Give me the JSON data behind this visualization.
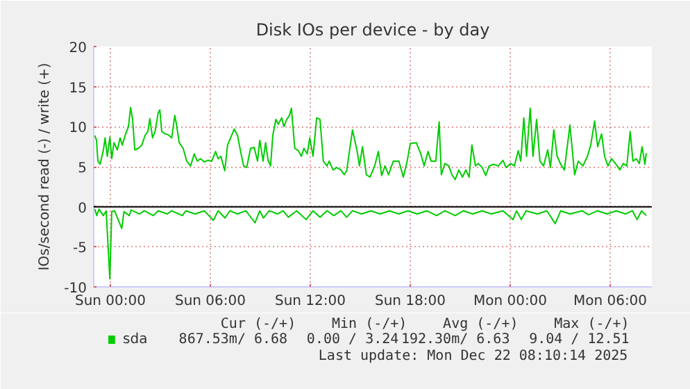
{
  "chart_data": {
    "type": "line",
    "title": "Disk IOs per device - by day",
    "ylabel": "IOs/second read (-) / write (+)",
    "xlim": [
      "2025-12-20T23:00",
      "2025-12-22T08:30"
    ],
    "ylim": [
      -10,
      20
    ],
    "xticks": [
      {
        "value": "2025-12-21T00:00",
        "label": "Sun 00:00"
      },
      {
        "value": "2025-12-21T06:00",
        "label": "Sun 06:00"
      },
      {
        "value": "2025-12-21T12:00",
        "label": "Sun 12:00"
      },
      {
        "value": "2025-12-21T18:00",
        "label": "Sun 18:00"
      },
      {
        "value": "2025-12-22T00:00",
        "label": "Mon 00:00"
      },
      {
        "value": "2025-12-22T06:00",
        "label": "Mon 06:00"
      }
    ],
    "yticks": [
      -10,
      -5,
      0,
      5,
      10,
      15,
      20
    ],
    "grid": true,
    "legend": "bottom left",
    "ref_lines": [
      {
        "axis": "y",
        "value": 0,
        "label": null,
        "color": "#000000"
      }
    ],
    "annotations": [
      "Cur (-/+)",
      "Min (-/+)",
      "Avg (-/+)",
      "Max (-/+)",
      "867.53m/  6.68",
      "0.00 /  3.24",
      "192.30m/  6.63",
      "9.04 / 12.51",
      "Last update:  Mon Dec 22 08:10:14 2025"
    ],
    "series": [
      {
        "name": "sda",
        "color": "#00cc00",
        "x": [
          "2025-12-20T23:04",
          "2025-12-20T23:10",
          "2025-12-20T23:15",
          "2025-12-20T23:23",
          "2025-12-20T23:35",
          "2025-12-20T23:41",
          "2025-12-20T23:49",
          "2025-12-20T23:58",
          "2025-12-21T00:05",
          "2025-12-21T00:13",
          "2025-12-21T00:25",
          "2025-12-21T00:35",
          "2025-12-21T00:43",
          "2025-12-21T00:55",
          "2025-12-21T01:05",
          "2025-12-21T01:13",
          "2025-12-21T01:20",
          "2025-12-21T01:28",
          "2025-12-21T01:41",
          "2025-12-21T01:53",
          "2025-12-21T02:05",
          "2025-12-21T02:15",
          "2025-12-21T02:22",
          "2025-12-21T02:32",
          "2025-12-21T02:41",
          "2025-12-21T02:52",
          "2025-12-21T02:58",
          "2025-12-21T03:05",
          "2025-12-21T03:17",
          "2025-12-21T03:28",
          "2025-12-21T03:41",
          "2025-12-21T03:52",
          "2025-12-21T03:58",
          "2025-12-21T04:08",
          "2025-12-21T04:22",
          "2025-12-21T04:35",
          "2025-12-21T04:49",
          "2025-12-21T05:02",
          "2025-12-21T05:13",
          "2025-12-21T05:25",
          "2025-12-21T05:38",
          "2025-12-21T05:52",
          "2025-12-21T06:05",
          "2025-12-21T06:19",
          "2025-12-21T06:28",
          "2025-12-21T06:38",
          "2025-12-21T06:52",
          "2025-12-21T07:02",
          "2025-12-21T07:13",
          "2025-12-21T07:26",
          "2025-12-21T07:38",
          "2025-12-21T07:49",
          "2025-12-21T08:00",
          "2025-12-21T08:11",
          "2025-12-21T08:25",
          "2025-12-21T08:38",
          "2025-12-21T08:50",
          "2025-12-21T08:58",
          "2025-12-21T09:10",
          "2025-12-21T09:19",
          "2025-12-21T09:28",
          "2025-12-21T09:37",
          "2025-12-21T09:45",
          "2025-12-21T09:56",
          "2025-12-21T10:05",
          "2025-12-21T10:17",
          "2025-12-21T10:25",
          "2025-12-21T10:35",
          "2025-12-21T10:45",
          "2025-12-21T10:52",
          "2025-12-21T11:04",
          "2025-12-21T11:17",
          "2025-12-21T11:28",
          "2025-12-21T11:37",
          "2025-12-21T11:49",
          "2025-12-21T11:58",
          "2025-12-21T12:10",
          "2025-12-21T12:23",
          "2025-12-21T12:35",
          "2025-12-21T12:47",
          "2025-12-21T13:00",
          "2025-12-21T13:08",
          "2025-12-21T13:22",
          "2025-12-21T13:35",
          "2025-12-21T13:50",
          "2025-12-21T14:02",
          "2025-12-21T14:11",
          "2025-12-21T14:32",
          "2025-12-21T14:49",
          "2025-12-21T14:57",
          "2025-12-21T15:08",
          "2025-12-21T15:22",
          "2025-12-21T15:35",
          "2025-12-21T15:52",
          "2025-12-21T16:05",
          "2025-12-21T16:17",
          "2025-12-21T16:29",
          "2025-12-21T16:42",
          "2025-12-21T16:59",
          "2025-12-21T17:19",
          "2025-12-21T17:35",
          "2025-12-21T17:49",
          "2025-12-21T18:00",
          "2025-12-21T18:22",
          "2025-12-21T18:38",
          "2025-12-21T18:50",
          "2025-12-21T19:04",
          "2025-12-21T19:15",
          "2025-12-21T19:32",
          "2025-12-21T19:44",
          "2025-12-21T19:52",
          "2025-12-21T20:05",
          "2025-12-21T20:19",
          "2025-12-21T20:30",
          "2025-12-21T20:42",
          "2025-12-21T20:55",
          "2025-12-21T21:08",
          "2025-12-21T21:20",
          "2025-12-21T21:32",
          "2025-12-21T21:42",
          "2025-12-21T21:55",
          "2025-12-21T22:05",
          "2025-12-21T22:19",
          "2025-12-21T22:32",
          "2025-12-21T22:44",
          "2025-12-21T23:00",
          "2025-12-21T23:17",
          "2025-12-21T23:34",
          "2025-12-21T23:45",
          "2025-12-22T00:02",
          "2025-12-22T00:15",
          "2025-12-22T00:29",
          "2025-12-22T00:38",
          "2025-12-22T00:49",
          "2025-12-22T00:59",
          "2025-12-22T01:12",
          "2025-12-22T01:22",
          "2025-12-22T01:35",
          "2025-12-22T01:47",
          "2025-12-22T02:00",
          "2025-12-22T02:15",
          "2025-12-22T02:25",
          "2025-12-22T02:37",
          "2025-12-22T02:49",
          "2025-12-22T03:02",
          "2025-12-22T03:15",
          "2025-12-22T03:35",
          "2025-12-22T03:52",
          "2025-12-22T04:05",
          "2025-12-22T04:22",
          "2025-12-22T04:38",
          "2025-12-22T04:50",
          "2025-12-22T05:04",
          "2025-12-22T05:15",
          "2025-12-22T05:29",
          "2025-12-22T05:40",
          "2025-12-22T05:52",
          "2025-12-22T06:05",
          "2025-12-22T06:19",
          "2025-12-22T06:35",
          "2025-12-22T06:47",
          "2025-12-22T07:00",
          "2025-12-22T07:12",
          "2025-12-22T07:22",
          "2025-12-22T07:34",
          "2025-12-22T07:45",
          "2025-12-22T07:55",
          "2025-12-22T08:05",
          "2025-12-22T08:10"
        ],
        "values": [
          8.9,
          8.3,
          5.7,
          5.3,
          7.1,
          8.6,
          6.3,
          8.7,
          6.0,
          8.0,
          7.1,
          8.6,
          7.7,
          9.1,
          10,
          12.4,
          10.9,
          7.1,
          7.3,
          7.7,
          8.9,
          9.4,
          11,
          8.6,
          9.4,
          11.7,
          12.1,
          9.4,
          9.1,
          9,
          8.6,
          11.4,
          10.3,
          8,
          7.3,
          5.7,
          5.1,
          6.6,
          5.7,
          6.0,
          5.6,
          5.8,
          5.7,
          6.9,
          6.0,
          6.3,
          4.5,
          7.7,
          8.6,
          9.7,
          8.9,
          6.9,
          5.1,
          4.9,
          7.3,
          7.4,
          5.7,
          8.3,
          5.7,
          8.0,
          5.8,
          5.1,
          8.9,
          10.9,
          10.3,
          11.1,
          10,
          10.9,
          11.4,
          12.3,
          7.3,
          7,
          6.3,
          7.3,
          6.6,
          8.6,
          6.3,
          11.1,
          10.9,
          5.7,
          5.1,
          5.7,
          4.6,
          4.9,
          4.6,
          4.0,
          4.5,
          9.6,
          6.9,
          5.1,
          7.5,
          4.0,
          3.7,
          5.1,
          6.9,
          3.9,
          5.1,
          4.0,
          5.7,
          5.7,
          3.7,
          5.7,
          7.9,
          8.0,
          6.6,
          5.1,
          6.9,
          5.7,
          5.7,
          10.6,
          4.0,
          5.4,
          5.1,
          4.0,
          3.4,
          4.6,
          3.7,
          4.6,
          3.7,
          7.7,
          5.1,
          5.4,
          4.9,
          3.9,
          5.1,
          5.3,
          5.1,
          5.8,
          4.9,
          5.4,
          5.1,
          7.0,
          5.7,
          11.1,
          6.3,
          12.3,
          6.3,
          10.9,
          5.7,
          5.1,
          7.1,
          4.9,
          9.6,
          6.3,
          5.3,
          4.6,
          10.2,
          4.0,
          5.7,
          5.1,
          6.3,
          7.7,
          10.7,
          7.5,
          9.1,
          6.3,
          5.1,
          6.0,
          5.4,
          4.6,
          5.4,
          5.1,
          9.4,
          5.7,
          6.0,
          5.4,
          7.5,
          5.3,
          6.7
        ]
      },
      {
        "color": "#00cc00",
        "x": [
          "2025-12-20T23:04",
          "2025-12-20T23:11",
          "2025-12-20T23:19",
          "2025-12-20T23:35",
          "2025-12-20T23:45",
          "2025-12-20T23:58",
          "2025-12-21T00:05",
          "2025-12-21T00:15",
          "2025-12-21T00:41",
          "2025-12-21T00:49",
          "2025-12-21T01:08",
          "2025-12-21T01:15",
          "2025-12-21T01:45",
          "2025-12-21T02:02",
          "2025-12-21T02:35",
          "2025-12-21T02:52",
          "2025-12-21T03:25",
          "2025-12-21T03:41",
          "2025-12-21T04:19",
          "2025-12-21T04:32",
          "2025-12-21T05:05",
          "2025-12-21T05:38",
          "2025-12-21T06:11",
          "2025-12-21T06:28",
          "2025-12-21T06:53",
          "2025-12-21T07:10",
          "2025-12-21T07:38",
          "2025-12-21T08:08",
          "2025-12-21T08:41",
          "2025-12-21T08:58",
          "2025-12-21T09:11",
          "2025-12-21T09:32",
          "2025-12-21T10:02",
          "2025-12-21T10:22",
          "2025-12-21T10:41",
          "2025-12-21T11:11",
          "2025-12-21T11:45",
          "2025-12-21T12:10",
          "2025-12-21T12:35",
          "2025-12-21T13:00",
          "2025-12-21T13:25",
          "2025-12-21T13:50",
          "2025-12-21T14:11",
          "2025-12-21T14:32",
          "2025-12-21T15:05",
          "2025-12-21T15:38",
          "2025-12-21T16:12",
          "2025-12-21T16:45",
          "2025-12-21T17:19",
          "2025-12-21T17:52",
          "2025-12-21T18:25",
          "2025-12-21T18:59",
          "2025-12-21T19:35",
          "2025-12-21T20:05",
          "2025-12-21T20:42",
          "2025-12-21T21:12",
          "2025-12-21T21:45",
          "2025-12-21T22:19",
          "2025-12-21T22:52",
          "2025-12-21T23:34",
          "2025-12-22T00:10",
          "2025-12-22T00:23",
          "2025-12-22T00:40",
          "2025-12-22T00:57",
          "2025-12-22T01:38",
          "2025-12-22T02:12",
          "2025-12-22T02:42",
          "2025-12-22T03:02",
          "2025-12-22T03:35",
          "2025-12-22T04:19",
          "2025-12-22T04:42",
          "2025-12-22T05:15",
          "2025-12-22T05:49",
          "2025-12-22T06:22",
          "2025-12-22T06:55",
          "2025-12-22T07:20",
          "2025-12-22T07:37",
          "2025-12-22T07:53",
          "2025-12-22T08:10"
        ],
        "values": [
          -0.3,
          -1.1,
          -0.3,
          -1.1,
          -0.5,
          -9.0,
          -0.6,
          -0.5,
          -2.7,
          -0.6,
          -1.1,
          -0.4,
          -0.9,
          -0.5,
          -1.1,
          -0.5,
          -0.9,
          -0.5,
          -1.1,
          -0.5,
          -0.9,
          -0.5,
          -1.7,
          -0.5,
          -1.4,
          -0.5,
          -0.9,
          -0.5,
          -2.0,
          -0.5,
          -1.4,
          -0.5,
          -0.9,
          -0.5,
          -1.3,
          -0.5,
          -1.6,
          -0.5,
          -1.3,
          -0.5,
          -1.1,
          -0.5,
          -1.3,
          -0.5,
          -0.9,
          -0.5,
          -0.9,
          -0.5,
          -0.9,
          -0.5,
          -0.9,
          -0.5,
          -1.1,
          -0.5,
          -1.1,
          -0.5,
          -0.9,
          -0.5,
          -0.9,
          -0.5,
          -1.6,
          -0.5,
          -1.6,
          -0.5,
          -0.9,
          -0.5,
          -2.1,
          -0.5,
          -0.9,
          -0.5,
          -1.0,
          -0.5,
          -0.9,
          -0.5,
          -0.9,
          -0.5,
          -1.6,
          -0.5,
          -1.1
        ]
      }
    ]
  }
}
